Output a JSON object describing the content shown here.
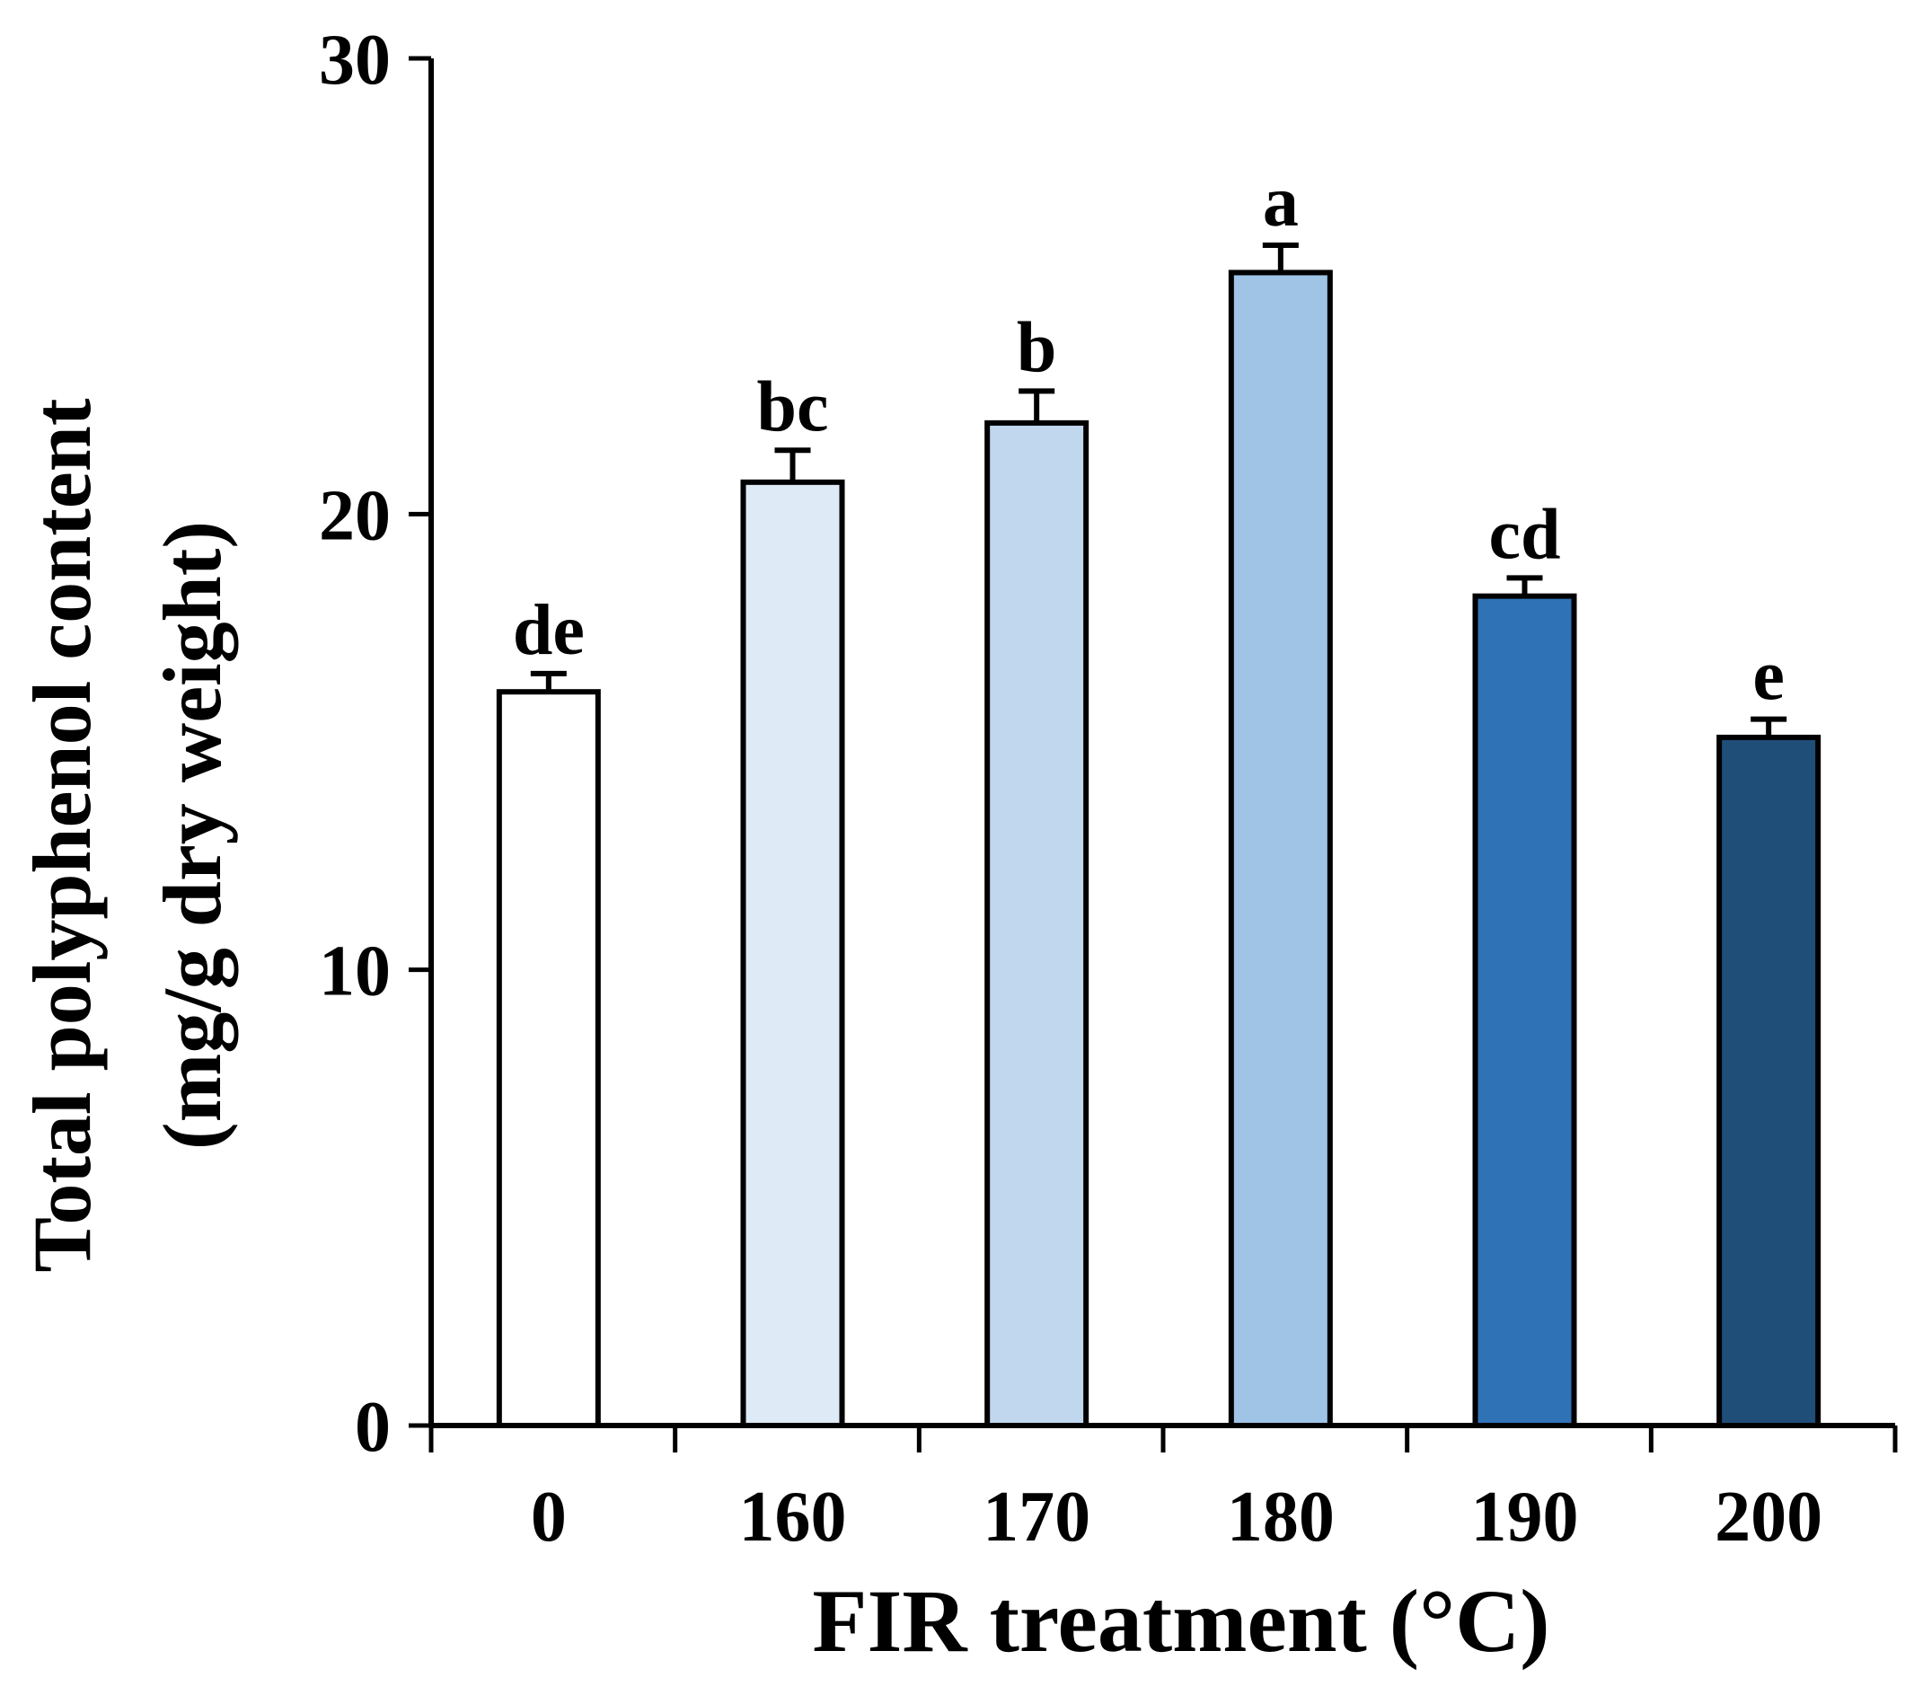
{
  "chart_data": {
    "type": "bar",
    "title": "",
    "xlabel": "FIR treatment (°C)",
    "ylabel_line1": "Total polyphenol content",
    "ylabel_line2": "(mg/g dry weight)",
    "ylim": [
      0,
      30
    ],
    "yticks": [
      0,
      10,
      20,
      30
    ],
    "ytick_labels": [
      "0",
      "10",
      "20",
      "30"
    ],
    "categories": [
      "0",
      "160",
      "170",
      "180",
      "190",
      "200"
    ],
    "values": [
      16.1,
      20.7,
      22.0,
      25.3,
      18.2,
      15.1
    ],
    "errors": [
      0.4,
      0.7,
      0.7,
      0.6,
      0.4,
      0.4
    ],
    "significance_letters": [
      "de",
      "bc",
      "b",
      "a",
      "cd",
      "e"
    ],
    "bar_colors": [
      "#ffffff",
      "#deebf7",
      "#c0d7ee",
      "#9fc4e6",
      "#3072b6",
      "#1f4e78"
    ],
    "grid": false,
    "legend": "none"
  }
}
